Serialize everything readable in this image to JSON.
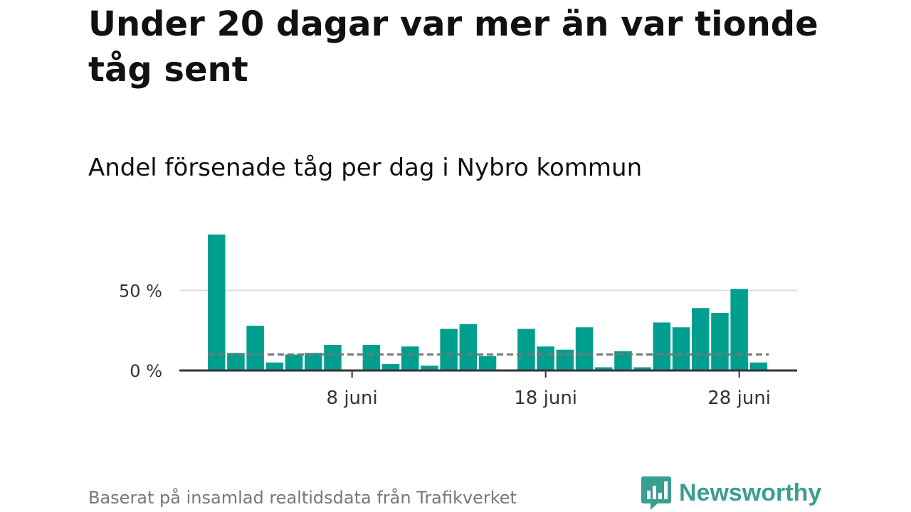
{
  "title": "Under 20 dagar var mer än var tionde tåg sent",
  "subtitle": "Andel försenade tåg per dag i Nybro kommun",
  "footer": "Baserat på insamlad realtidsdata från Trafikverket",
  "brand": {
    "name": "Newsworthy",
    "color": "#3a9e90",
    "icon": "chart-bubble-icon"
  },
  "colors": {
    "bar": "#009e8e",
    "reference_line": "#777777",
    "grid": "#dddddd",
    "axis": "#333333"
  },
  "chart_data": {
    "type": "bar",
    "x": [
      "2021-06-01",
      "2021-06-02",
      "2021-06-03",
      "2021-06-04",
      "2021-06-05",
      "2021-06-06",
      "2021-06-07",
      "2021-06-08",
      "2021-06-09",
      "2021-06-10",
      "2021-06-11",
      "2021-06-12",
      "2021-06-13",
      "2021-06-14",
      "2021-06-15",
      "2021-06-16",
      "2021-06-17",
      "2021-06-18",
      "2021-06-19",
      "2021-06-20",
      "2021-06-21",
      "2021-06-22",
      "2021-06-23",
      "2021-06-24",
      "2021-06-25",
      "2021-06-26",
      "2021-06-27",
      "2021-06-28",
      "2021-06-29"
    ],
    "values": [
      85,
      11,
      28,
      5,
      10,
      11,
      16,
      0,
      16,
      4,
      15,
      3,
      26,
      29,
      9,
      0,
      26,
      15,
      13,
      27,
      2,
      12,
      2,
      30,
      27,
      39,
      36,
      51,
      5
    ],
    "reference_line": 10,
    "y_ticks": [
      0,
      50
    ],
    "y_tick_labels": [
      "0 %",
      "50 %"
    ],
    "x_ticks": [
      "2021-06-08",
      "2021-06-18",
      "2021-06-28"
    ],
    "x_tick_labels": [
      "8 juni",
      "18 juni",
      "28 juni"
    ],
    "ylim": [
      0,
      90
    ],
    "grid": true,
    "legend": "none"
  }
}
